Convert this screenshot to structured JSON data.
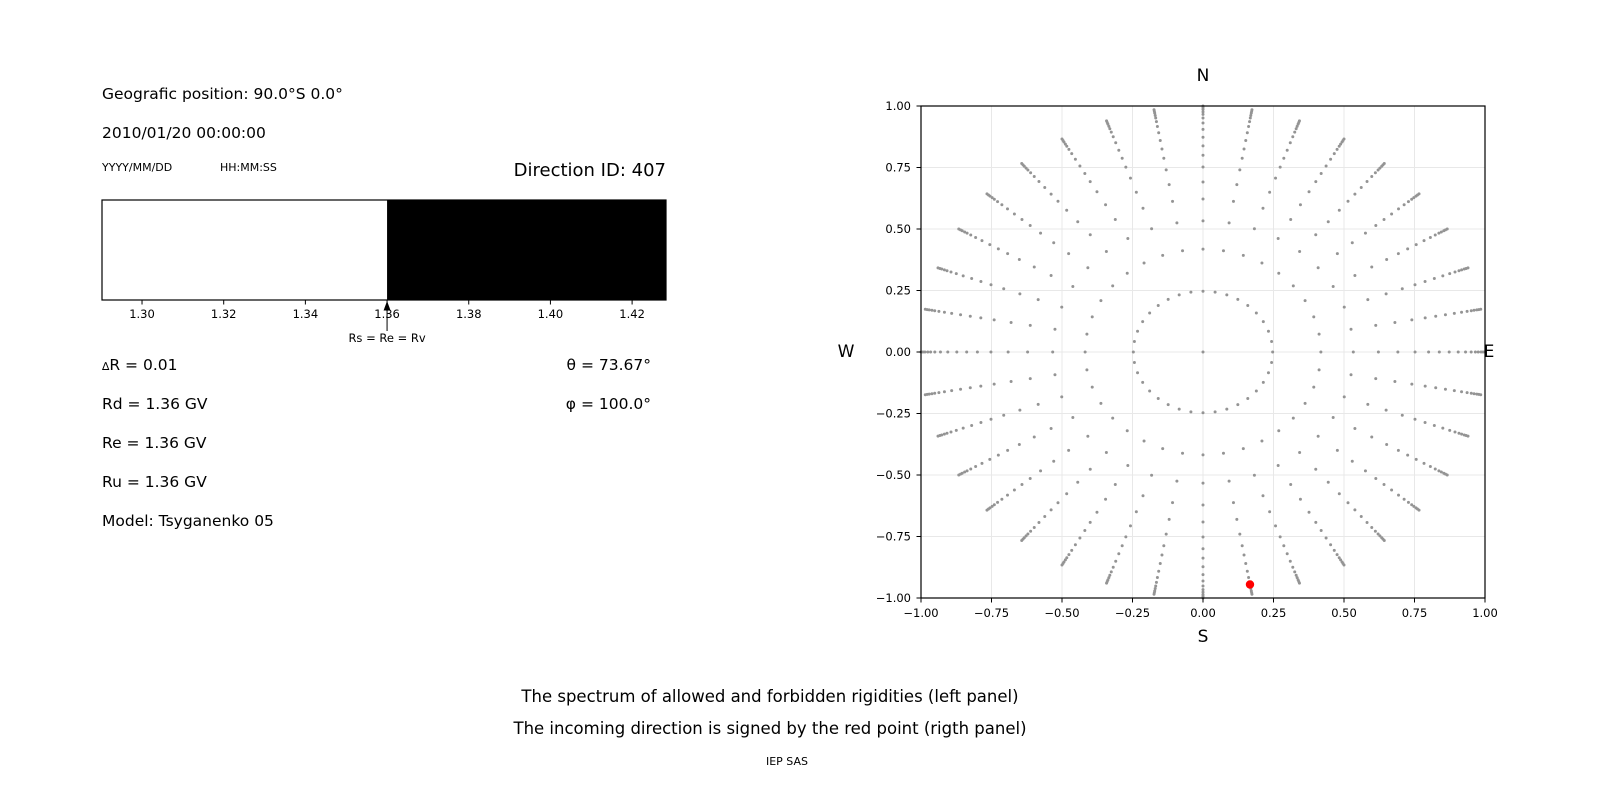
{
  "header": {
    "geographic_position": "Geografic position: 90.0°S 0.0°",
    "datetime": "2010/01/20 00:00:00",
    "date_format": "YYYY/MM/DD",
    "time_format": "HH:MM:SS",
    "direction_id": "Direction ID: 407"
  },
  "params": {
    "delta_symbol": "∆",
    "delta_r": "R = 0.01",
    "rd": "Rd = 1.36 GV",
    "re": "Re = 1.36 GV",
    "ru": "Ru = 1.36 GV",
    "model": "Model: Tsyganenko 05",
    "theta": "θ = 73.67°",
    "phi": "φ = 100.0°"
  },
  "footer": {
    "caption_line1": "The spectrum of allowed and forbidden rigidities (left panel)",
    "caption_line2": "The incoming direction is signed by the red point (rigth panel)",
    "credit": "IEP SAS"
  },
  "chart_data": [
    {
      "type": "bar",
      "title": "",
      "xlabel": "",
      "ylabel": "",
      "xlim": [
        1.2902,
        1.4283
      ],
      "xticks": [
        1.3,
        1.32,
        1.34,
        1.36,
        1.38,
        1.4,
        1.42
      ],
      "xtick_labels": [
        "1.30",
        "1.32",
        "1.34",
        "1.36",
        "1.38",
        "1.40",
        "1.42"
      ],
      "segments": [
        {
          "from": 1.2902,
          "to": 1.36,
          "color": "#ffffff",
          "meaning": "allowed rigidities"
        },
        {
          "from": 1.36,
          "to": 1.4283,
          "color": "#000000",
          "meaning": "forbidden rigidities"
        }
      ],
      "annotation": {
        "text": "Rs = Re = Rv",
        "x": 1.36
      }
    },
    {
      "type": "scatter",
      "title": "",
      "xlabel": "",
      "ylabel": "",
      "xlim": [
        -1.0,
        1.0
      ],
      "ylim": [
        -1.0,
        1.0
      ],
      "grid": true,
      "grid_color": "#e8e8e8",
      "xticks": [
        -1.0,
        -0.75,
        -0.5,
        -0.25,
        0.0,
        0.25,
        0.5,
        0.75,
        1.0
      ],
      "yticks": [
        -1.0,
        -0.75,
        -0.5,
        -0.25,
        0.0,
        0.25,
        0.5,
        0.75,
        1.0
      ],
      "xtick_labels": [
        "−1.00",
        "−0.75",
        "−0.50",
        "−0.25",
        "0.00",
        "0.25",
        "0.50",
        "0.75",
        "1.00"
      ],
      "ytick_labels": [
        "−1.00",
        "−0.75",
        "−0.50",
        "−0.25",
        "0.00",
        "0.25",
        "0.50",
        "0.75",
        "1.00"
      ],
      "compass_labels": {
        "top": "N",
        "bottom": "S",
        "left": "W",
        "right": "E"
      },
      "dot_color": "#949494",
      "center_dot": [
        0,
        0
      ],
      "spokes": {
        "count": 36,
        "azimuth_step_deg": 10,
        "radii": [
          0.247,
          0.418,
          0.533,
          0.622,
          0.691,
          0.752,
          0.8,
          0.838,
          0.873,
          0.905,
          0.931,
          0.951,
          0.966,
          0.976,
          0.986,
          0.993,
          1.0
        ]
      },
      "red_point": {
        "x": 0.1666,
        "y": -0.9451,
        "color": "#ff0000",
        "zenith_deg": 73.67,
        "azimuth_deg": 100.0
      }
    }
  ]
}
